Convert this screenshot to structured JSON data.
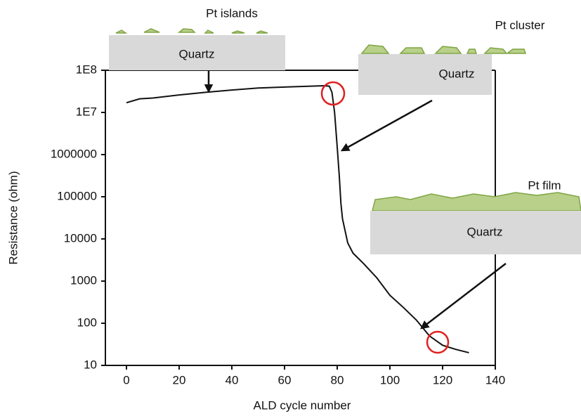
{
  "chart_data": {
    "type": "line",
    "xlabel": "ALD cycle number",
    "ylabel": "Resistance (ohm)",
    "x": [
      0,
      5,
      10,
      20,
      30,
      40,
      50,
      60,
      70,
      75,
      77,
      78,
      79,
      80,
      80.8,
      81.4,
      82,
      84,
      86,
      90,
      95,
      100,
      105,
      110,
      115,
      120,
      125,
      130
    ],
    "values": [
      17000000,
      21000000,
      22000000,
      26000000,
      30000000,
      34000000,
      38000000,
      40000000,
      42000000,
      43000000,
      42000000,
      30000000,
      10000000,
      1500000,
      300000,
      70000,
      30000,
      8000,
      4600,
      2600,
      1200,
      460,
      240,
      120,
      50,
      30,
      24,
      20
    ],
    "color": "#111111",
    "xlim": [
      -8,
      140
    ],
    "xticks": [
      0,
      20,
      40,
      60,
      80,
      100,
      120,
      140
    ],
    "ylim": [
      10,
      100000000
    ],
    "ylog": true,
    "yticks": [
      {
        "value": 100000000,
        "label": "1E8"
      },
      {
        "value": 10000000,
        "label": "1E7"
      },
      1000000,
      100000,
      10000,
      1000,
      100,
      10
    ],
    "annotations": [
      "Pt islands",
      "Quartz",
      "Pt cluster",
      "Quartz",
      "Pt film",
      "Quartz"
    ]
  }
}
